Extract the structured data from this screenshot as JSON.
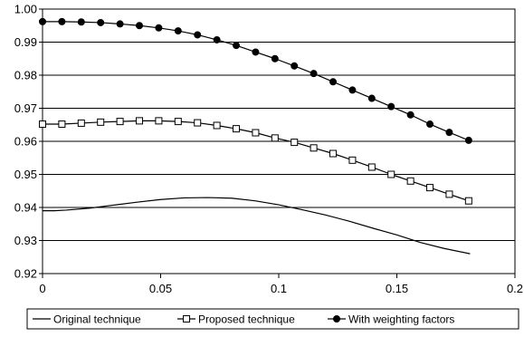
{
  "chart_data": {
    "type": "line",
    "title": "",
    "xlabel": "",
    "ylabel": "",
    "xlim": [
      0,
      0.2
    ],
    "ylim": [
      0.92,
      1.0
    ],
    "x_ticks": [
      0,
      0.05,
      0.1,
      0.15,
      0.2
    ],
    "x_tick_labels": [
      "0",
      "0.05",
      "0.1",
      "0.15",
      "0.2"
    ],
    "y_ticks": [
      0.92,
      0.93,
      0.94,
      0.95,
      0.96,
      0.97,
      0.98,
      0.99,
      1.0
    ],
    "y_tick_labels": [
      "0.92",
      "0.93",
      "0.94",
      "0.95",
      "0.96",
      "0.97",
      "0.98",
      "0.99",
      "1.00"
    ],
    "grid": {
      "horizontal": true,
      "vertical": false
    },
    "legend_position": "bottom",
    "series": [
      {
        "name": "Original technique",
        "marker": "none",
        "color": "#000000",
        "points": [
          [
            0.0,
            0.939
          ],
          [
            0.005,
            0.939
          ],
          [
            0.01,
            0.9392
          ],
          [
            0.02,
            0.9398
          ],
          [
            0.03,
            0.9407
          ],
          [
            0.04,
            0.9416
          ],
          [
            0.05,
            0.9424
          ],
          [
            0.06,
            0.9429
          ],
          [
            0.07,
            0.943
          ],
          [
            0.08,
            0.9428
          ],
          [
            0.09,
            0.942
          ],
          [
            0.1,
            0.9408
          ],
          [
            0.11,
            0.9393
          ],
          [
            0.12,
            0.9377
          ],
          [
            0.13,
            0.9358
          ],
          [
            0.14,
            0.9337
          ],
          [
            0.15,
            0.9317
          ],
          [
            0.16,
            0.9294
          ],
          [
            0.17,
            0.9276
          ],
          [
            0.181,
            0.926
          ]
        ]
      },
      {
        "name": "Proposed technique",
        "marker": "open-square",
        "color": "#000000",
        "points": [
          [
            0.0,
            0.9652
          ],
          [
            0.0082,
            0.9652
          ],
          [
            0.0164,
            0.9655
          ],
          [
            0.0246,
            0.9658
          ],
          [
            0.0328,
            0.966
          ],
          [
            0.041,
            0.9662
          ],
          [
            0.0492,
            0.9662
          ],
          [
            0.0574,
            0.966
          ],
          [
            0.0656,
            0.9656
          ],
          [
            0.0738,
            0.9648
          ],
          [
            0.082,
            0.9638
          ],
          [
            0.0902,
            0.9626
          ],
          [
            0.0984,
            0.961
          ],
          [
            0.1066,
            0.9597
          ],
          [
            0.1148,
            0.958
          ],
          [
            0.123,
            0.9563
          ],
          [
            0.1312,
            0.9543
          ],
          [
            0.1394,
            0.9522
          ],
          [
            0.1476,
            0.95
          ],
          [
            0.1558,
            0.948
          ],
          [
            0.164,
            0.946
          ],
          [
            0.1722,
            0.944
          ],
          [
            0.1804,
            0.942
          ]
        ]
      },
      {
        "name": "With weighting factors",
        "marker": "filled-circle",
        "color": "#000000",
        "points": [
          [
            0.0,
            0.9962
          ],
          [
            0.0082,
            0.9962
          ],
          [
            0.0164,
            0.9961
          ],
          [
            0.0246,
            0.9959
          ],
          [
            0.0328,
            0.9955
          ],
          [
            0.041,
            0.995
          ],
          [
            0.0492,
            0.9943
          ],
          [
            0.0574,
            0.9934
          ],
          [
            0.0656,
            0.9922
          ],
          [
            0.0738,
            0.9907
          ],
          [
            0.082,
            0.989
          ],
          [
            0.0902,
            0.987
          ],
          [
            0.0984,
            0.985
          ],
          [
            0.1066,
            0.9828
          ],
          [
            0.1148,
            0.9805
          ],
          [
            0.123,
            0.978
          ],
          [
            0.1312,
            0.9755
          ],
          [
            0.1394,
            0.973
          ],
          [
            0.1476,
            0.9705
          ],
          [
            0.1558,
            0.968
          ],
          [
            0.164,
            0.9652
          ],
          [
            0.1722,
            0.9627
          ],
          [
            0.1804,
            0.9603
          ]
        ]
      }
    ]
  }
}
